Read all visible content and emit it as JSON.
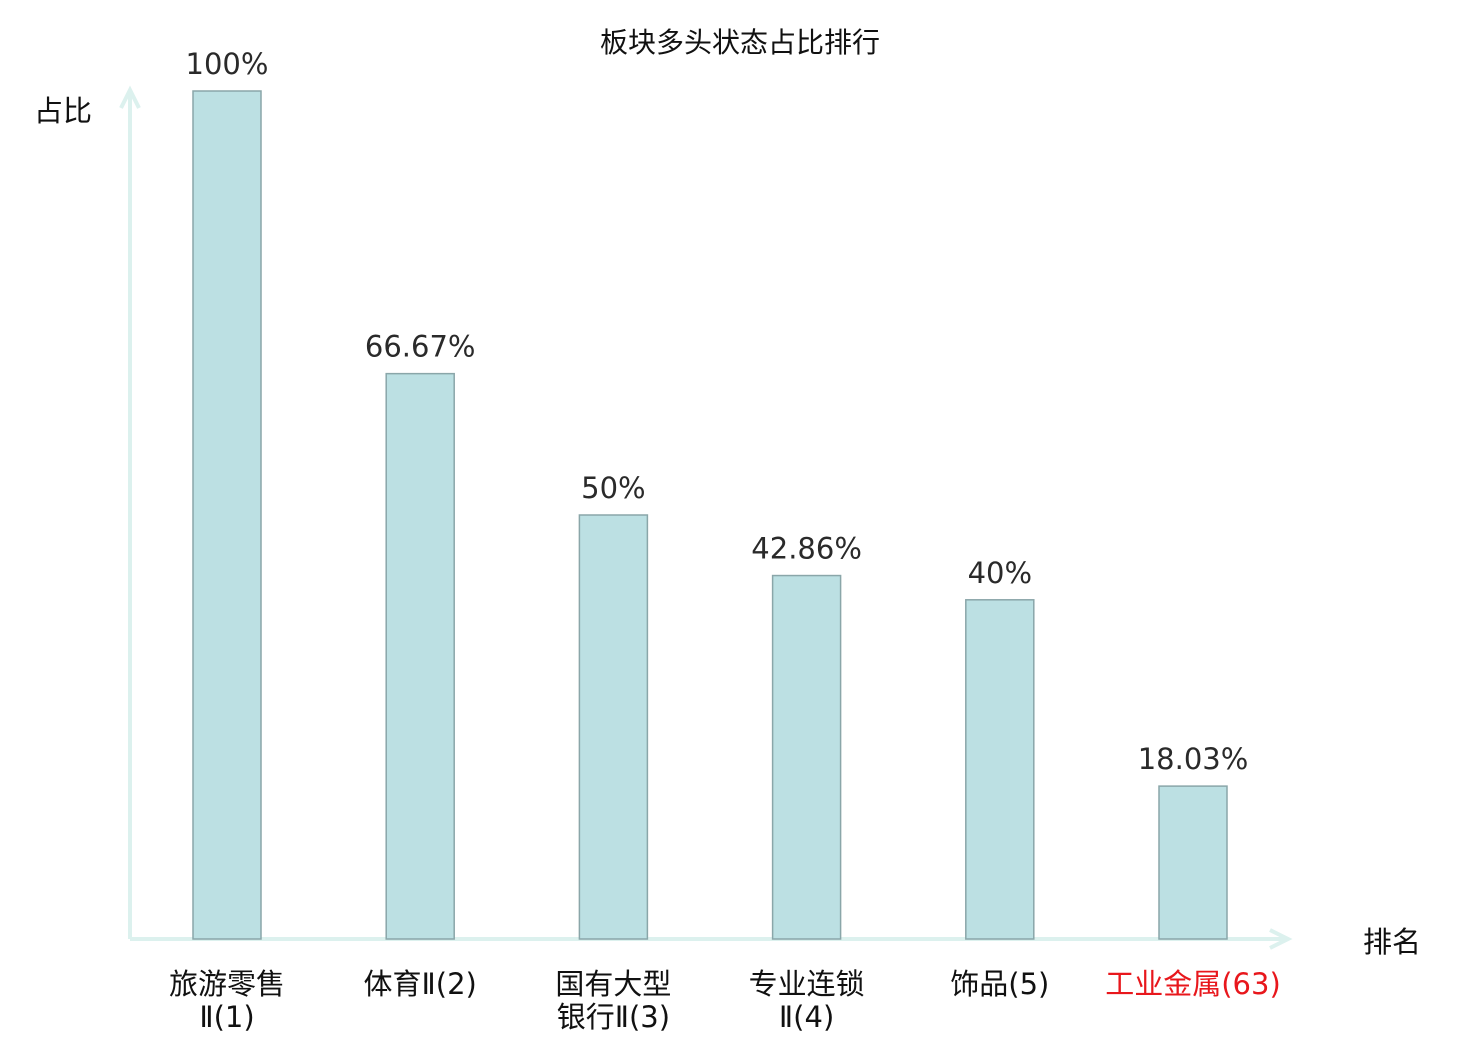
{
  "chart_data": {
    "type": "bar",
    "title": "板块多头状态占比排行",
    "xlabel": "排名",
    "ylabel": "占比",
    "categories": [
      [
        "旅游零售",
        "Ⅱ(1)"
      ],
      [
        "体育Ⅱ(2)"
      ],
      [
        "国有大型",
        "银行Ⅱ(3)"
      ],
      [
        "专业连锁",
        "Ⅱ(4)"
      ],
      [
        "饰品(5)"
      ],
      [
        "工业金属(63)"
      ]
    ],
    "values": [
      100,
      66.67,
      50,
      42.86,
      40,
      18.03
    ],
    "value_labels": [
      "100%",
      "66.67%",
      "50%",
      "42.86%",
      "40%",
      "18.03%"
    ],
    "highlight_index": 5,
    "ylim": [
      0,
      100
    ],
    "grid": false,
    "colors": {
      "bar_fill": "#bce0e3",
      "bar_stroke": "#8aa6a9",
      "axis": "#dcf1ee",
      "highlight_label": "#e8171c",
      "text": "#222222"
    }
  }
}
